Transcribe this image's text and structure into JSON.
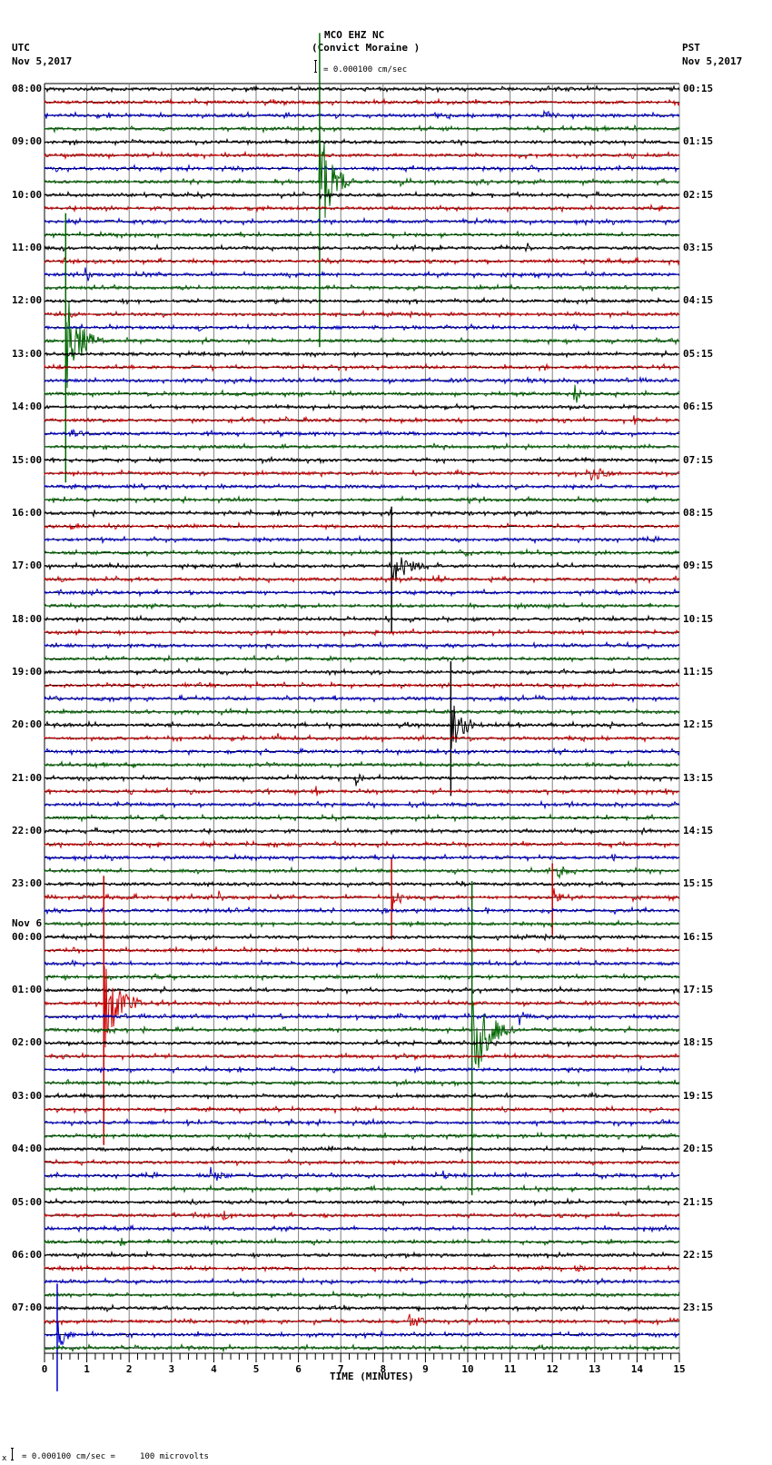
{
  "header": {
    "station": "MCO EHZ NC",
    "location": "(Convict Moraine )",
    "scale_text": "= 0.000100 cm/sec",
    "left_tz": "UTC",
    "left_date": "Nov 5,2017",
    "right_tz": "PST",
    "right_date": "Nov 5,2017"
  },
  "footer": {
    "scale_note": "= 0.000100 cm/sec =     100 microvolts",
    "scale_prefix": "x"
  },
  "colors": {
    "trace_cycle": [
      "#000000",
      "#cc0000",
      "#0000cc",
      "#006600"
    ],
    "grid": "#808080",
    "axis": "#000000"
  },
  "chart_data": {
    "type": "line",
    "title": "MCO EHZ NC (Convict Moraine )",
    "subtitle": "= 0.000100 cm/sec",
    "xlabel": "TIME (MINUTES)",
    "ylabel": "",
    "xlim": [
      0,
      15
    ],
    "x_ticks": [
      "0",
      "1",
      "2",
      "3",
      "4",
      "5",
      "6",
      "7",
      "8",
      "9",
      "10",
      "11",
      "12",
      "13",
      "14",
      "15"
    ],
    "grid": true,
    "rows_per_hour": 4,
    "minutes_per_row": 15,
    "row_count": 96,
    "left_hour_labels": [
      {
        "row": 0,
        "text": "08:00"
      },
      {
        "row": 4,
        "text": "09:00"
      },
      {
        "row": 8,
        "text": "10:00"
      },
      {
        "row": 12,
        "text": "11:00"
      },
      {
        "row": 16,
        "text": "12:00"
      },
      {
        "row": 20,
        "text": "13:00"
      },
      {
        "row": 24,
        "text": "14:00"
      },
      {
        "row": 28,
        "text": "15:00"
      },
      {
        "row": 32,
        "text": "16:00"
      },
      {
        "row": 36,
        "text": "17:00"
      },
      {
        "row": 40,
        "text": "18:00"
      },
      {
        "row": 44,
        "text": "19:00"
      },
      {
        "row": 48,
        "text": "20:00"
      },
      {
        "row": 52,
        "text": "21:00"
      },
      {
        "row": 56,
        "text": "22:00"
      },
      {
        "row": 60,
        "text": "23:00"
      },
      {
        "row": 63,
        "text": "Nov 6"
      },
      {
        "row": 64,
        "text": "00:00"
      },
      {
        "row": 68,
        "text": "01:00"
      },
      {
        "row": 72,
        "text": "02:00"
      },
      {
        "row": 76,
        "text": "03:00"
      },
      {
        "row": 80,
        "text": "04:00"
      },
      {
        "row": 84,
        "text": "05:00"
      },
      {
        "row": 88,
        "text": "06:00"
      },
      {
        "row": 92,
        "text": "07:00"
      }
    ],
    "right_hour_labels": [
      {
        "row": 0,
        "text": "00:15"
      },
      {
        "row": 4,
        "text": "01:15"
      },
      {
        "row": 8,
        "text": "02:15"
      },
      {
        "row": 12,
        "text": "03:15"
      },
      {
        "row": 16,
        "text": "04:15"
      },
      {
        "row": 20,
        "text": "05:15"
      },
      {
        "row": 24,
        "text": "06:15"
      },
      {
        "row": 28,
        "text": "07:15"
      },
      {
        "row": 32,
        "text": "08:15"
      },
      {
        "row": 36,
        "text": "09:15"
      },
      {
        "row": 40,
        "text": "10:15"
      },
      {
        "row": 44,
        "text": "11:15"
      },
      {
        "row": 48,
        "text": "12:15"
      },
      {
        "row": 52,
        "text": "13:15"
      },
      {
        "row": 56,
        "text": "14:15"
      },
      {
        "row": 60,
        "text": "15:15"
      },
      {
        "row": 64,
        "text": "16:15"
      },
      {
        "row": 68,
        "text": "17:15"
      },
      {
        "row": 72,
        "text": "18:15"
      },
      {
        "row": 76,
        "text": "19:15"
      },
      {
        "row": 80,
        "text": "20:15"
      },
      {
        "row": 84,
        "text": "21:15"
      },
      {
        "row": 88,
        "text": "22:15"
      },
      {
        "row": 92,
        "text": "23:15"
      }
    ],
    "events": [
      {
        "row": 2,
        "minute": 11.8,
        "amp": 8,
        "dur": 0.8
      },
      {
        "row": 3,
        "minute": 9.4,
        "amp": 4,
        "dur": 0.6
      },
      {
        "row": 4,
        "minute": 0.7,
        "amp": 6,
        "dur": 0.2
      },
      {
        "row": 7,
        "minute": 6.5,
        "amp": 70,
        "dur": 0.8,
        "tall": true
      },
      {
        "row": 7,
        "minute": 8.4,
        "amp": 8,
        "dur": 0.4
      },
      {
        "row": 7,
        "minute": 10.2,
        "amp": 5,
        "dur": 0.8
      },
      {
        "row": 9,
        "minute": 4.8,
        "amp": 6,
        "dur": 0.3
      },
      {
        "row": 12,
        "minute": 11.4,
        "amp": 10,
        "dur": 0.3
      },
      {
        "row": 14,
        "minute": 0.95,
        "amp": 16,
        "dur": 0.3
      },
      {
        "row": 15,
        "minute": 6.7,
        "amp": 4,
        "dur": 0.3
      },
      {
        "row": 18,
        "minute": 3.6,
        "amp": 8,
        "dur": 0.3
      },
      {
        "row": 19,
        "minute": 0.5,
        "amp": 60,
        "dur": 0.9,
        "tall": true
      },
      {
        "row": 22,
        "minute": 11.4,
        "amp": 5,
        "dur": 0.6
      },
      {
        "row": 23,
        "minute": 12.5,
        "amp": 18,
        "dur": 0.4
      },
      {
        "row": 25,
        "minute": 5.7,
        "amp": 6,
        "dur": 0.3
      },
      {
        "row": 25,
        "minute": 13.9,
        "amp": 12,
        "dur": 0.3
      },
      {
        "row": 26,
        "minute": 0.6,
        "amp": 6,
        "dur": 1.2
      },
      {
        "row": 29,
        "minute": 12.9,
        "amp": 10,
        "dur": 1.2
      },
      {
        "row": 31,
        "minute": 10.0,
        "amp": 6,
        "dur": 0.6
      },
      {
        "row": 33,
        "minute": 0.6,
        "amp": 6,
        "dur": 0.6
      },
      {
        "row": 36,
        "minute": 8.2,
        "amp": 28,
        "dur": 1.0,
        "tall": true
      },
      {
        "row": 37,
        "minute": 9.3,
        "amp": 8,
        "dur": 0.3
      },
      {
        "row": 41,
        "minute": 7.7,
        "amp": 12,
        "dur": 0.3
      },
      {
        "row": 48,
        "minute": 9.6,
        "amp": 30,
        "dur": 0.9,
        "tall": true
      },
      {
        "row": 49,
        "minute": 5.5,
        "amp": 8,
        "dur": 0.3
      },
      {
        "row": 52,
        "minute": 7.3,
        "amp": 14,
        "dur": 0.4
      },
      {
        "row": 53,
        "minute": 6.4,
        "amp": 8,
        "dur": 0.3
      },
      {
        "row": 58,
        "minute": 13.4,
        "amp": 8,
        "dur": 0.3
      },
      {
        "row": 59,
        "minute": 12.1,
        "amp": 12,
        "dur": 0.6
      },
      {
        "row": 61,
        "minute": 4.1,
        "amp": 10,
        "dur": 0.3
      },
      {
        "row": 61,
        "minute": 8.2,
        "amp": 18,
        "dur": 0.6,
        "tall": true
      },
      {
        "row": 61,
        "minute": 12.0,
        "amp": 16,
        "dur": 0.4,
        "tall": true
      },
      {
        "row": 61,
        "minute": 13.9,
        "amp": 8,
        "dur": 0.2
      },
      {
        "row": 62,
        "minute": 3.8,
        "amp": 6,
        "dur": 0.2
      },
      {
        "row": 62,
        "minute": 8.0,
        "amp": 10,
        "dur": 0.2
      },
      {
        "row": 65,
        "minute": 7.4,
        "amp": 8,
        "dur": 0.2
      },
      {
        "row": 69,
        "minute": 1.4,
        "amp": 60,
        "dur": 1.0,
        "tall": true
      },
      {
        "row": 70,
        "minute": 11.2,
        "amp": 14,
        "dur": 0.5
      },
      {
        "row": 70,
        "minute": 8.4,
        "amp": 4,
        "dur": 0.2
      },
      {
        "row": 71,
        "minute": 10.1,
        "amp": 70,
        "dur": 1.0,
        "tall": true
      },
      {
        "row": 77,
        "minute": 10.8,
        "amp": 8,
        "dur": 0.3
      },
      {
        "row": 79,
        "minute": 4.8,
        "amp": 6,
        "dur": 0.3
      },
      {
        "row": 82,
        "minute": 3.9,
        "amp": 12,
        "dur": 0.8
      },
      {
        "row": 82,
        "minute": 9.4,
        "amp": 6,
        "dur": 0.8
      },
      {
        "row": 84,
        "minute": 4.4,
        "amp": 6,
        "dur": 0.2
      },
      {
        "row": 85,
        "minute": 4.2,
        "amp": 10,
        "dur": 0.3
      },
      {
        "row": 87,
        "minute": 1.8,
        "amp": 5,
        "dur": 0.8
      },
      {
        "row": 87,
        "minute": 2.9,
        "amp": 5,
        "dur": 0.6
      },
      {
        "row": 88,
        "minute": 12.1,
        "amp": 6,
        "dur": 0.3
      },
      {
        "row": 89,
        "minute": 12.5,
        "amp": 6,
        "dur": 0.8
      },
      {
        "row": 93,
        "minute": 8.6,
        "amp": 12,
        "dur": 0.8
      },
      {
        "row": 94,
        "minute": 0.3,
        "amp": 24,
        "dur": 0.5,
        "tall": true
      }
    ]
  }
}
